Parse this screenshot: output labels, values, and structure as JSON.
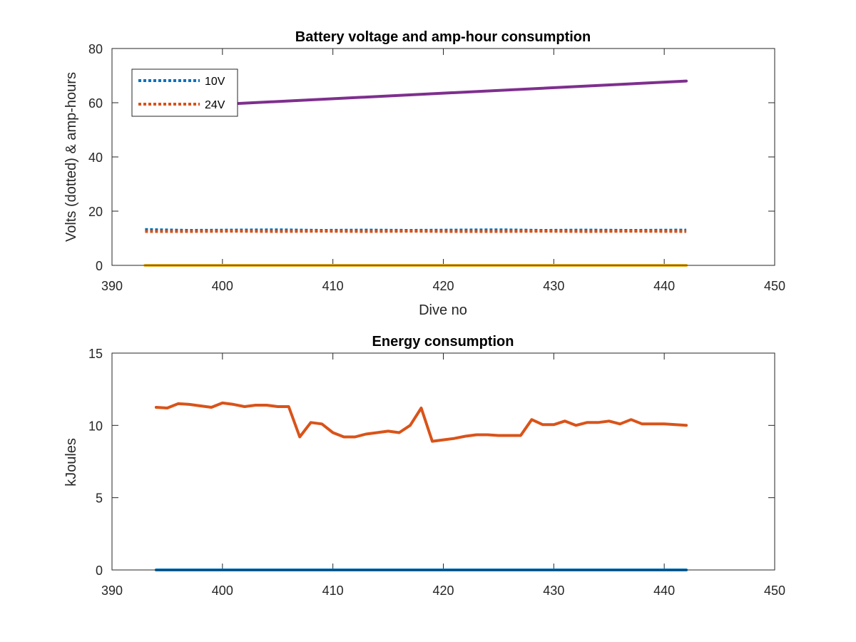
{
  "chart_data": [
    {
      "type": "line",
      "title": "Battery voltage and amp-hour consumption",
      "xlabel": "Dive no",
      "ylabel": "Volts (dotted) & amp-hours",
      "xlim": [
        390,
        450
      ],
      "ylim": [
        0,
        80
      ],
      "xticks": [
        390,
        400,
        410,
        420,
        430,
        440,
        450
      ],
      "yticks": [
        0,
        20,
        40,
        60,
        80
      ],
      "grid": false,
      "legend": {
        "placement": "top-left"
      },
      "series": [
        {
          "name": "10V",
          "style": "dotted",
          "color": "#0072BD",
          "x": [
            393,
            397,
            401,
            405,
            409,
            413,
            417,
            421,
            425,
            429,
            433,
            437,
            442
          ],
          "y": [
            13.2,
            12.9,
            13.0,
            13.1,
            12.9,
            13.0,
            12.9,
            13.0,
            13.1,
            12.9,
            13.0,
            12.9,
            13.0
          ]
        },
        {
          "name": "24V",
          "style": "dotted",
          "color": "#D95319",
          "x": [
            393,
            397,
            401,
            405,
            409,
            413,
            417,
            421,
            425,
            429,
            433,
            437,
            442
          ],
          "y": [
            12.5,
            12.5,
            12.6,
            12.5,
            12.6,
            12.5,
            12.6,
            12.5,
            12.5,
            12.6,
            12.5,
            12.6,
            12.5
          ]
        },
        {
          "style": "solid",
          "color": "#EDB120",
          "x": [
            393,
            442
          ],
          "y": [
            0,
            0
          ]
        },
        {
          "style": "solid",
          "color": "#7E2F8E",
          "x": [
            393,
            442
          ],
          "y": [
            58,
            68
          ]
        }
      ]
    },
    {
      "type": "line",
      "title": "Energy consumption",
      "xlabel": "",
      "ylabel": "kJoules",
      "xlim": [
        390,
        450
      ],
      "ylim": [
        0,
        15
      ],
      "xticks": [
        390,
        400,
        410,
        420,
        430,
        440,
        450
      ],
      "yticks": [
        0,
        5,
        10,
        15
      ],
      "grid": false,
      "series": [
        {
          "style": "solid",
          "color": "#D95319",
          "x": [
            394,
            395,
            396,
            397,
            398,
            399,
            400,
            401,
            402,
            403,
            404,
            405,
            406,
            407,
            408,
            409,
            410,
            411,
            412,
            413,
            414,
            415,
            416,
            417,
            418,
            419,
            420,
            421,
            422,
            423,
            424,
            425,
            426,
            427,
            428,
            429,
            430,
            431,
            432,
            433,
            434,
            435,
            436,
            437,
            438,
            439,
            440,
            441,
            442
          ],
          "y": [
            11.25,
            11.2,
            11.5,
            11.45,
            11.35,
            11.25,
            11.55,
            11.45,
            11.3,
            11.4,
            11.4,
            11.3,
            11.3,
            9.2,
            10.2,
            10.1,
            9.5,
            9.2,
            9.2,
            9.4,
            9.5,
            9.6,
            9.5,
            10.0,
            11.2,
            8.9,
            9.0,
            9.1,
            9.25,
            9.35,
            9.35,
            9.3,
            9.3,
            9.3,
            10.4,
            10.05,
            10.05,
            10.3,
            10.0,
            10.2,
            10.2,
            10.3,
            10.1,
            10.4,
            10.1,
            10.1,
            10.1,
            10.05,
            10.0
          ]
        },
        {
          "style": "solid",
          "color": "#0072BD",
          "x": [
            394,
            442
          ],
          "y": [
            0,
            0
          ]
        }
      ]
    }
  ]
}
